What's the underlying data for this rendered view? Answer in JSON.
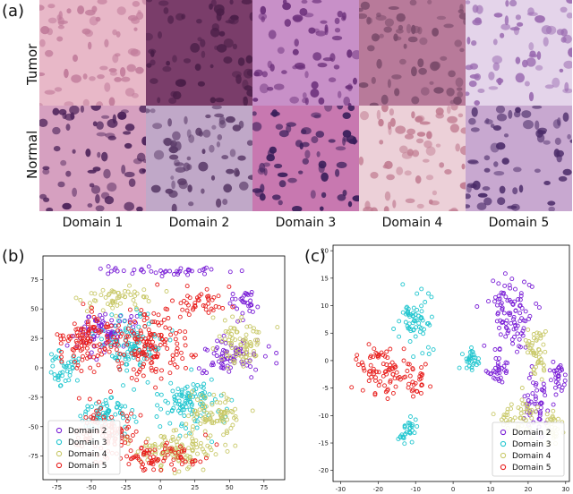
{
  "panel_a": {
    "letter": "(a)",
    "row_labels": [
      "Tumor",
      "Normal"
    ],
    "domains": [
      "Domain 1",
      "Domain 2",
      "Domain 3",
      "Domain 4",
      "Domain 5"
    ]
  },
  "panel_b": {
    "letter": "(b)"
  },
  "panel_c": {
    "letter": "(c)"
  },
  "colors": {
    "Domain 2": "#7a1fd6",
    "Domain 3": "#22c6cf",
    "Domain 4": "#c9c96a",
    "Domain 5": "#e8201e"
  },
  "chart_data": [
    {
      "type": "scatter",
      "panel": "b",
      "xlim": [
        -85,
        90
      ],
      "ylim": [
        -95,
        95
      ],
      "xticks": [
        -75,
        -50,
        -25,
        0,
        25,
        50,
        75
      ],
      "yticks": [
        -75,
        -50,
        -25,
        0,
        25,
        50,
        75
      ],
      "legend_placement": "bottom-left",
      "series": [
        {
          "name": "Domain 2",
          "clusters": [
            [
              0,
              82,
              40,
              4
            ],
            [
              -40,
              30,
              20,
              15
            ],
            [
              60,
              55,
              10,
              10
            ],
            [
              50,
              10,
              20,
              15
            ]
          ]
        },
        {
          "name": "Domain 3",
          "clusters": [
            [
              -70,
              0,
              10,
              15
            ],
            [
              -40,
              -40,
              20,
              15
            ],
            [
              20,
              -30,
              20,
              20
            ],
            [
              -20,
              20,
              20,
              20
            ]
          ]
        },
        {
          "name": "Domain 4",
          "clusters": [
            [
              60,
              20,
              15,
              20
            ],
            [
              -30,
              60,
              20,
              10
            ],
            [
              10,
              -70,
              30,
              15
            ],
            [
              40,
              -40,
              20,
              15
            ]
          ]
        },
        {
          "name": "Domain 5",
          "clusters": [
            [
              -55,
              25,
              15,
              25
            ],
            [
              -10,
              20,
              25,
              25
            ],
            [
              -40,
              -55,
              20,
              20
            ],
            [
              0,
              -75,
              30,
              10
            ],
            [
              30,
              55,
              15,
              10
            ]
          ]
        }
      ]
    },
    {
      "type": "scatter",
      "panel": "c",
      "xlim": [
        -32,
        31
      ],
      "ylim": [
        -22,
        21
      ],
      "xticks": [
        -30,
        -20,
        -10,
        0,
        10,
        20,
        30
      ],
      "yticks": [
        -20,
        -15,
        -10,
        -5,
        0,
        5,
        10,
        15,
        20
      ],
      "legend_placement": "bottom-right",
      "series": [
        {
          "name": "Domain 2",
          "clusters": [
            [
              15,
              8,
              5,
              6
            ],
            [
              22,
              -8,
              3,
              5
            ],
            [
              28,
              -3,
              2,
              3
            ],
            [
              12,
              -2,
              3,
              3
            ]
          ]
        },
        {
          "name": "Domain 3",
          "clusters": [
            [
              -10,
              7,
              4,
              5
            ],
            [
              -12,
              -13,
              2,
              2
            ],
            [
              5,
              0,
              2,
              2
            ]
          ]
        },
        {
          "name": "Domain 4",
          "clusters": [
            [
              17,
              -10,
              5,
              3
            ],
            [
              22,
              2,
              3,
              5
            ],
            [
              26,
              -12,
              2,
              3
            ]
          ]
        },
        {
          "name": "Domain 5",
          "clusters": [
            [
              -19,
              -2,
              6,
              4
            ],
            [
              -10,
              -3,
              3,
              3
            ]
          ]
        }
      ]
    }
  ]
}
